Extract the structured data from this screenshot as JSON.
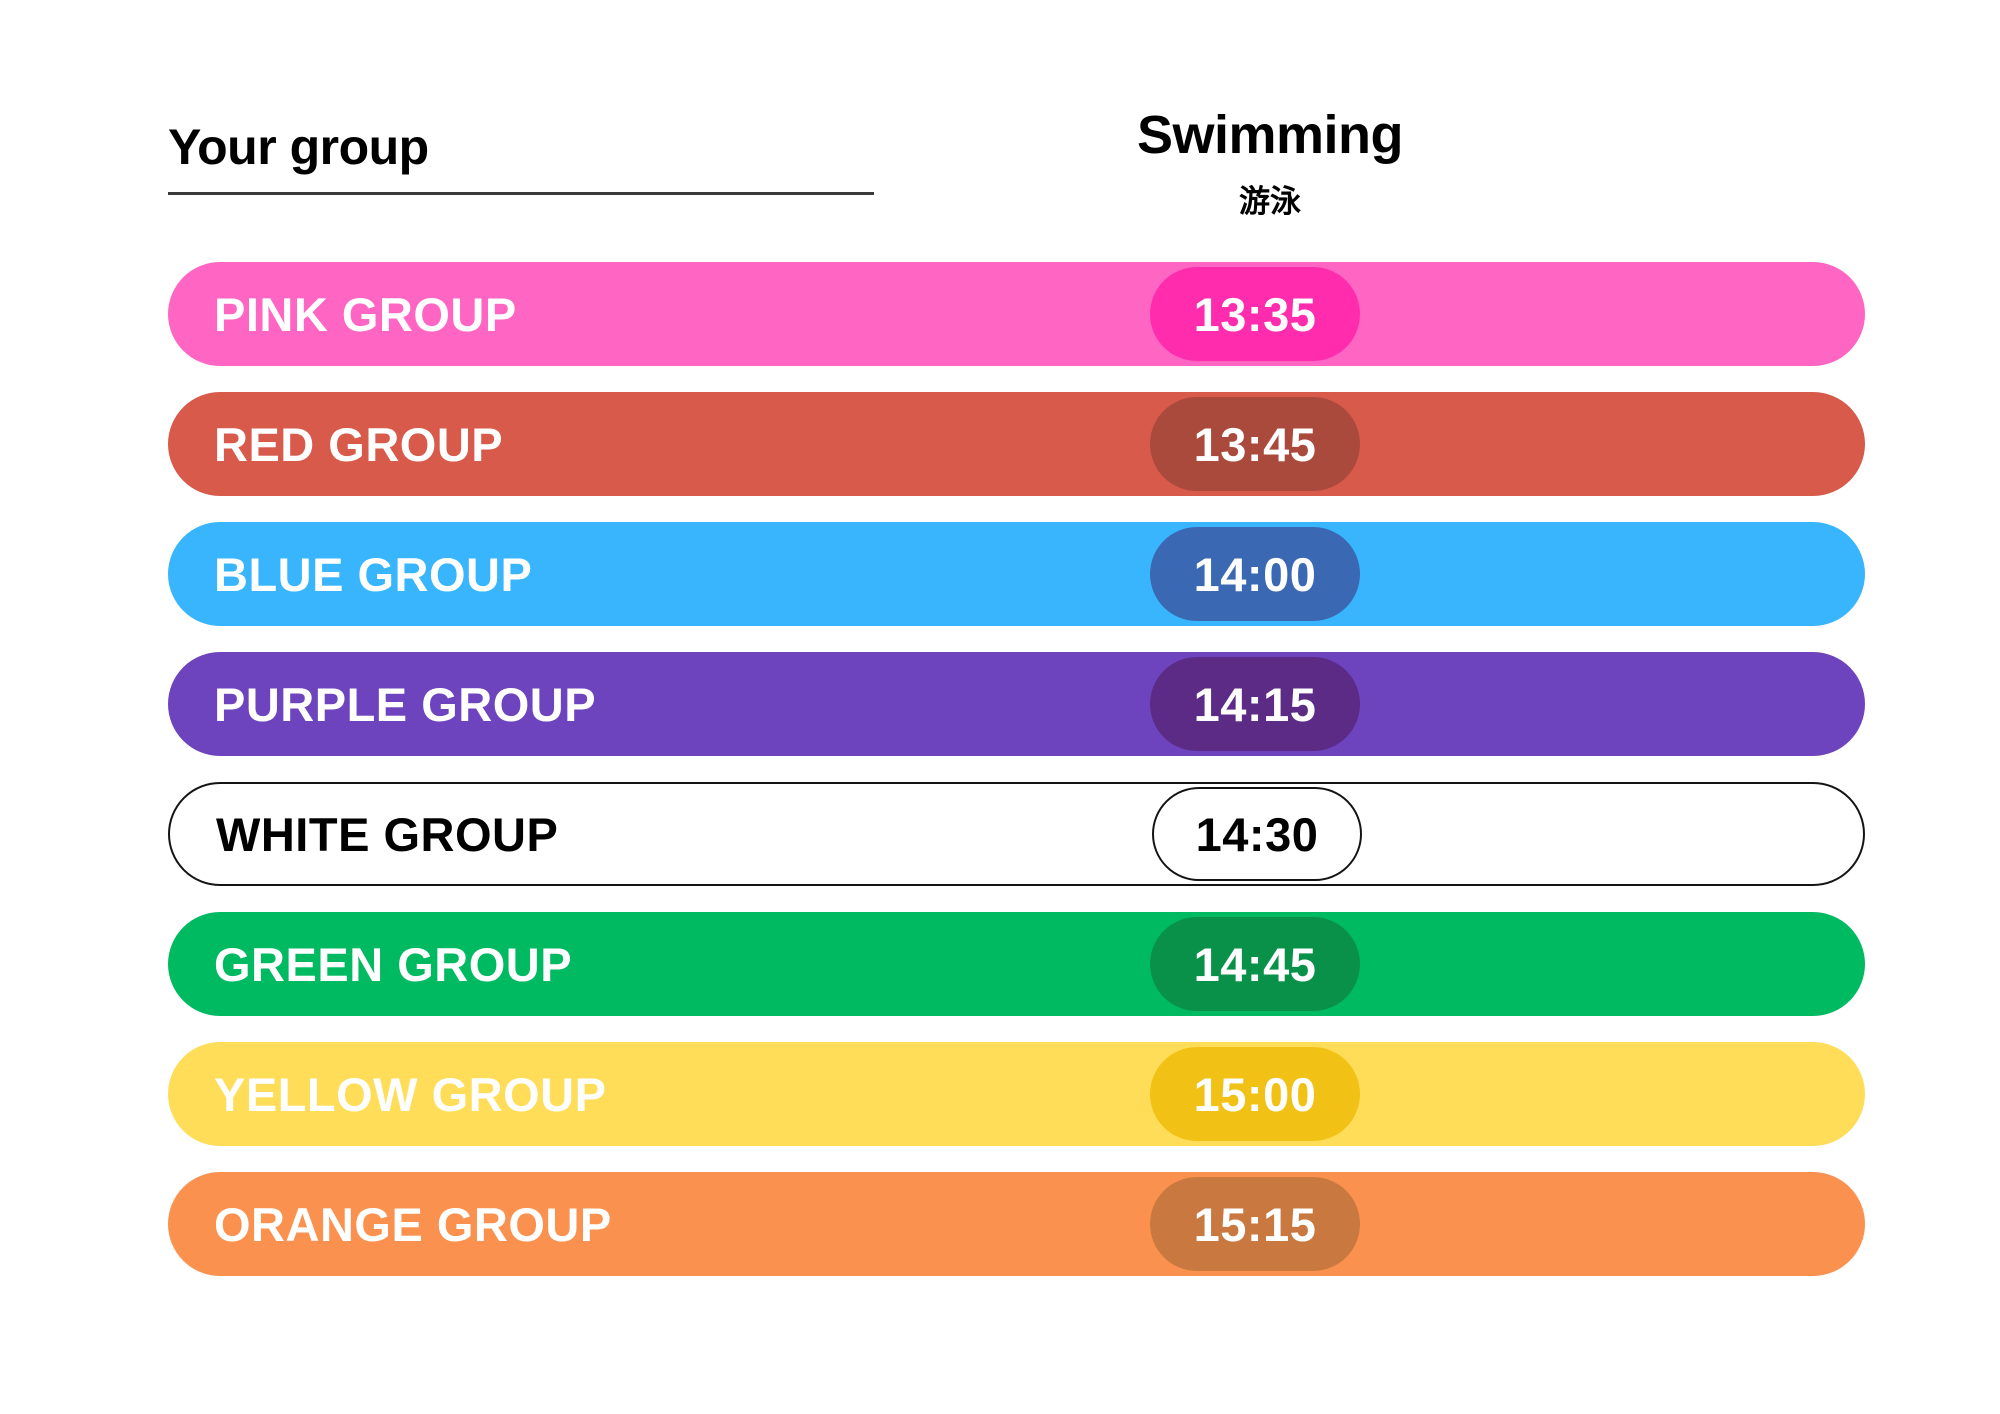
{
  "header": {
    "left_label": "Your group",
    "activity_title": "Swimming",
    "activity_subtitle": "游泳"
  },
  "schedule": {
    "rows": [
      {
        "group": "PINK GROUP",
        "time": "13:35",
        "bar_color": "#FF66C4",
        "badge_color": "#FF2DAD",
        "text_color": "#FFFFFF",
        "bordered": false
      },
      {
        "group": "RED GROUP",
        "time": "13:45",
        "bar_color": "#D75A4B",
        "badge_color": "#A94A3C",
        "text_color": "#FFFFFF",
        "bordered": false
      },
      {
        "group": "BLUE GROUP",
        "time": "14:00",
        "bar_color": "#38B5FC",
        "badge_color": "#3A68B2",
        "text_color": "#FFFFFF",
        "bordered": false
      },
      {
        "group": "PURPLE GROUP",
        "time": "14:15",
        "bar_color": "#6D44BE",
        "badge_color": "#5B2B85",
        "text_color": "#FFFFFF",
        "bordered": false
      },
      {
        "group": "WHITE GROUP",
        "time": "14:30",
        "bar_color": "#FFFFFF",
        "badge_color": "#FFFFFF",
        "text_color": "#000000",
        "bordered": true
      },
      {
        "group": "GREEN GROUP",
        "time": "14:45",
        "bar_color": "#00BA62",
        "badge_color": "#0A9149",
        "text_color": "#FFFFFF",
        "bordered": false
      },
      {
        "group": "YELLOW GROUP",
        "time": "15:00",
        "bar_color": "#FFDD59",
        "badge_color": "#F2C115",
        "text_color": "#FFFFFF",
        "bordered": false
      },
      {
        "group": "ORANGE GROUP",
        "time": "15:15",
        "bar_color": "#FB914E",
        "badge_color": "#C97940",
        "text_color": "#FFFFFF",
        "bordered": false
      }
    ]
  },
  "colors": {
    "background": "#FFFFFF",
    "underline": "#3A3A3A",
    "outline": "#141414"
  }
}
